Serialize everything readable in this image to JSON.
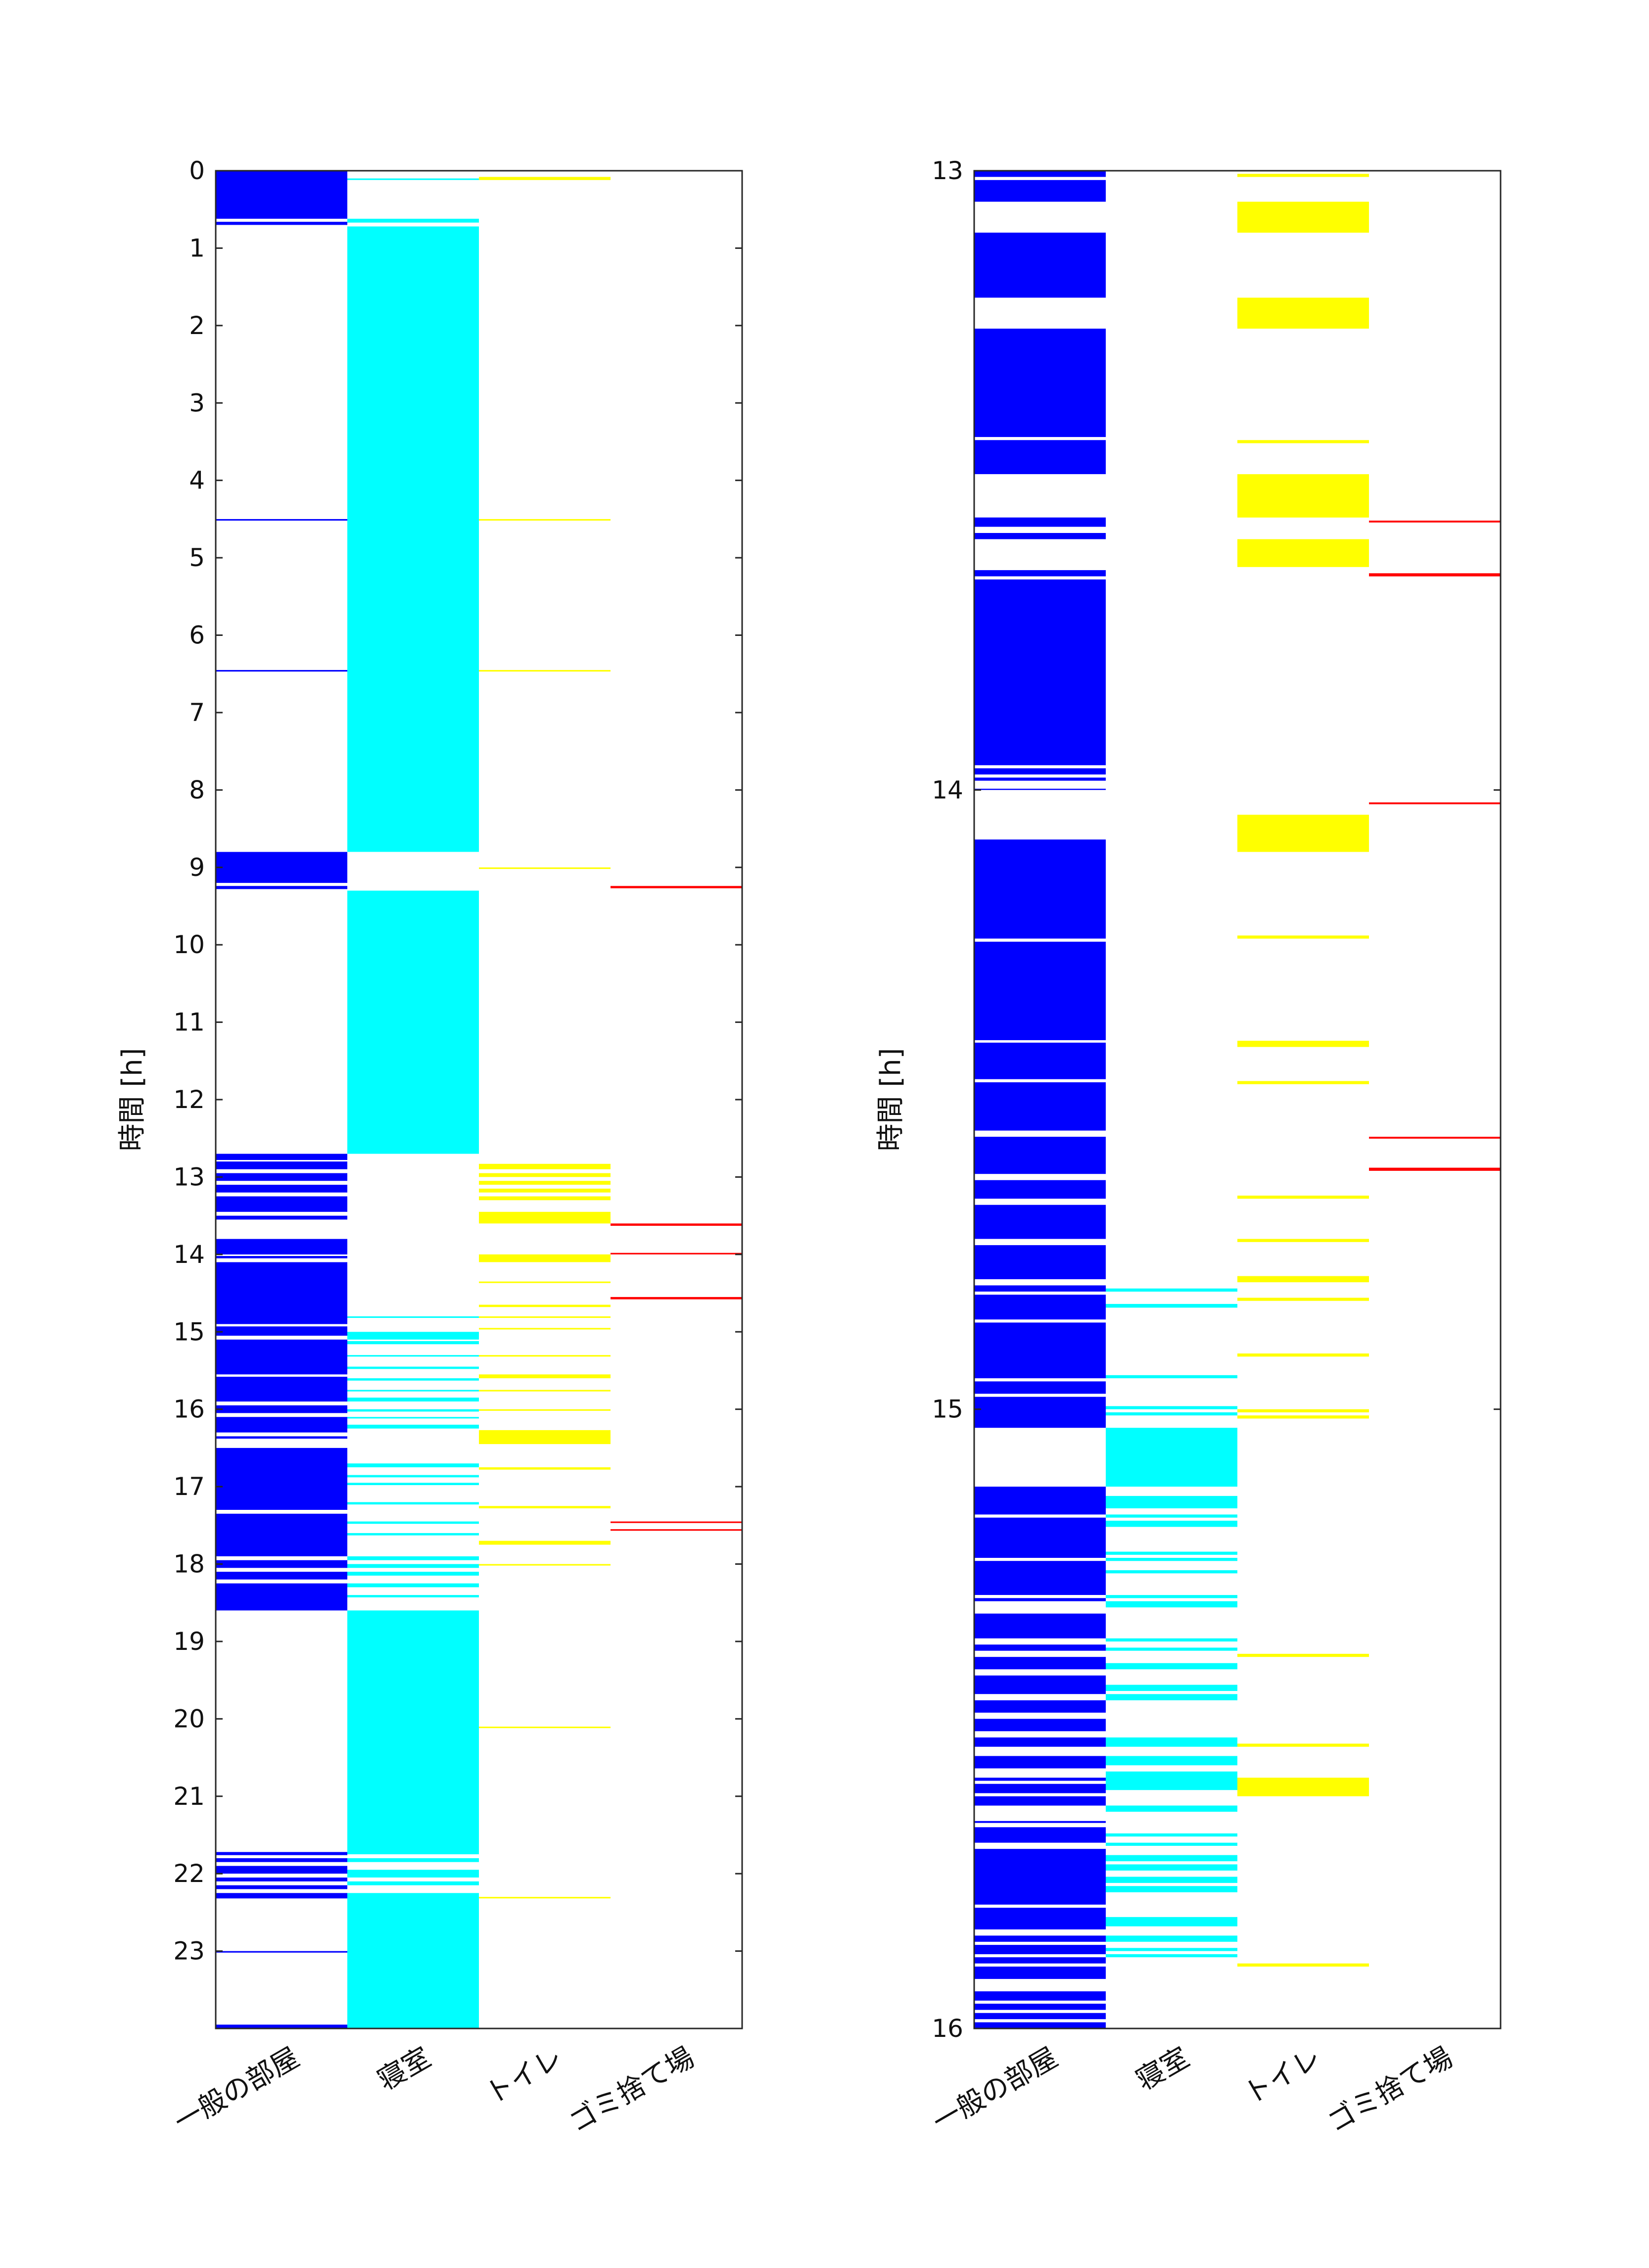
{
  "chart_data": [
    {
      "type": "heatmap",
      "categories": [
        "一般の部屋",
        "寝室",
        "トイレ",
        "ゴミ捨て場"
      ],
      "colors": [
        "#0000ff",
        "#00ffff",
        "#ffff00",
        "#ff0000"
      ],
      "ylabel": "時間 [h]",
      "xlabel": "",
      "title": "",
      "ylim": [
        0,
        24
      ],
      "y_reversed": true,
      "yticks": [
        0,
        1,
        2,
        3,
        4,
        5,
        6,
        7,
        8,
        9,
        10,
        11,
        12,
        13,
        14,
        15,
        16,
        17,
        18,
        19,
        20,
        21,
        22,
        23
      ],
      "yticklabels": [
        "0",
        "1",
        "2",
        "3",
        "4",
        "5",
        "6",
        "7",
        "8",
        "9",
        "10",
        "11",
        "12",
        "13",
        "14",
        "15",
        "16",
        "17",
        "18",
        "19",
        "20",
        "21",
        "22",
        "23"
      ],
      "grid": false,
      "series": [
        {
          "intervals": [
            [
              0.0,
              0.62
            ],
            [
              0.66,
              0.7
            ],
            [
              8.8,
              9.2
            ],
            [
              9.24,
              9.28
            ],
            [
              4.5,
              4.52
            ],
            [
              6.45,
              6.47
            ],
            [
              12.7,
              12.78
            ],
            [
              12.8,
              12.9
            ],
            [
              12.95,
              13.05
            ],
            [
              13.1,
              13.2
            ],
            [
              13.25,
              13.45
            ],
            [
              13.5,
              13.55
            ],
            [
              13.8,
              14.0
            ],
            [
              14.02,
              14.05
            ],
            [
              14.1,
              14.9
            ],
            [
              14.93,
              15.05
            ],
            [
              15.1,
              15.55
            ],
            [
              15.58,
              15.9
            ],
            [
              15.95,
              16.05
            ],
            [
              16.1,
              16.3
            ],
            [
              16.35,
              16.38
            ],
            [
              16.5,
              17.3
            ],
            [
              17.35,
              17.9
            ],
            [
              17.95,
              18.05
            ],
            [
              18.1,
              18.2
            ],
            [
              18.25,
              18.6
            ],
            [
              21.72,
              21.76
            ],
            [
              21.8,
              21.85
            ],
            [
              21.9,
              22.0
            ],
            [
              22.05,
              22.1
            ],
            [
              22.15,
              22.2
            ],
            [
              22.25,
              22.32
            ],
            [
              23.0,
              23.02
            ],
            [
              23.95,
              24.0
            ]
          ]
        },
        {
          "intervals": [
            [
              0.1,
              0.12
            ],
            [
              0.62,
              0.67
            ],
            [
              0.72,
              8.8
            ],
            [
              9.3,
              12.7
            ],
            [
              14.8,
              14.82
            ],
            [
              15.0,
              15.1
            ],
            [
              15.12,
              15.16
            ],
            [
              15.3,
              15.32
            ],
            [
              15.45,
              15.48
            ],
            [
              15.6,
              15.63
            ],
            [
              15.75,
              15.77
            ],
            [
              15.85,
              15.9
            ],
            [
              16.0,
              16.03
            ],
            [
              16.1,
              16.12
            ],
            [
              16.2,
              16.25
            ],
            [
              16.7,
              16.75
            ],
            [
              16.85,
              16.88
            ],
            [
              16.95,
              16.98
            ],
            [
              17.2,
              17.23
            ],
            [
              17.45,
              17.48
            ],
            [
              17.6,
              17.63
            ],
            [
              17.9,
              17.95
            ],
            [
              18.0,
              18.05
            ],
            [
              18.1,
              18.15
            ],
            [
              18.25,
              18.3
            ],
            [
              18.4,
              18.43
            ],
            [
              18.6,
              21.75
            ],
            [
              21.8,
              21.85
            ],
            [
              21.95,
              22.05
            ],
            [
              22.1,
              22.15
            ],
            [
              22.25,
              24.0
            ]
          ]
        },
        {
          "intervals": [
            [
              0.08,
              0.12
            ],
            [
              4.5,
              4.52
            ],
            [
              6.45,
              6.47
            ],
            [
              9.0,
              9.02
            ],
            [
              12.83,
              12.9
            ],
            [
              12.95,
              13.0
            ],
            [
              13.05,
              13.1
            ],
            [
              13.15,
              13.2
            ],
            [
              13.25,
              13.3
            ],
            [
              13.45,
              13.6
            ],
            [
              14.0,
              14.1
            ],
            [
              14.35,
              14.37
            ],
            [
              14.65,
              14.68
            ],
            [
              14.8,
              14.82
            ],
            [
              14.95,
              14.97
            ],
            [
              15.3,
              15.32
            ],
            [
              15.55,
              15.6
            ],
            [
              15.75,
              15.77
            ],
            [
              16.0,
              16.02
            ],
            [
              16.27,
              16.45
            ],
            [
              16.75,
              16.78
            ],
            [
              17.25,
              17.28
            ],
            [
              17.7,
              17.75
            ],
            [
              18.0,
              18.02
            ],
            [
              20.1,
              20.12
            ],
            [
              22.3,
              22.32
            ]
          ]
        },
        {
          "intervals": [
            [
              9.24,
              9.27
            ],
            [
              13.6,
              13.63
            ],
            [
              13.98,
              14.0
            ],
            [
              14.55,
              14.58
            ],
            [
              17.45,
              17.47
            ],
            [
              17.55,
              17.57
            ]
          ]
        }
      ]
    },
    {
      "type": "heatmap",
      "categories": [
        "一般の部屋",
        "寝室",
        "トイレ",
        "ゴミ捨て場"
      ],
      "colors": [
        "#0000ff",
        "#00ffff",
        "#ffff00",
        "#ff0000"
      ],
      "ylabel": "時間 [h]",
      "xlabel": "",
      "title": "",
      "ylim": [
        13,
        16
      ],
      "y_reversed": true,
      "yticks": [
        13,
        14,
        15,
        16
      ],
      "yticklabels": [
        "13",
        "14",
        "15",
        "16"
      ],
      "grid": false,
      "series": [
        {
          "intervals": [
            [
              13.0,
              13.01
            ],
            [
              13.015,
              13.05
            ],
            [
              13.1,
              13.205
            ],
            [
              13.255,
              13.43
            ],
            [
              13.435,
              13.49
            ],
            [
              13.56,
              13.575
            ],
            [
              13.585,
              13.595
            ],
            [
              13.645,
              13.655
            ],
            [
              13.66,
              13.96
            ],
            [
              13.965,
              13.975
            ],
            [
              13.98,
              13.985
            ],
            [
              13.998,
              14.0
            ],
            [
              14.08,
              14.24
            ],
            [
              14.245,
              14.404
            ],
            [
              14.408,
              14.467
            ],
            [
              14.472,
              14.55
            ],
            [
              14.56,
              14.62
            ],
            [
              14.63,
              14.66
            ],
            [
              14.67,
              14.725
            ],
            [
              14.735,
              14.79
            ],
            [
              14.8,
              14.81
            ],
            [
              14.815,
              14.855
            ],
            [
              14.86,
              14.95
            ],
            [
              14.955,
              14.975
            ],
            [
              14.98,
              15.03
            ],
            [
              15.125,
              15.17
            ],
            [
              15.175,
              15.24
            ],
            [
              15.245,
              15.3
            ],
            [
              15.305,
              15.31
            ],
            [
              15.33,
              15.37
            ],
            [
              15.38,
              15.39
            ],
            [
              15.4,
              15.42
            ],
            [
              15.43,
              15.46
            ],
            [
              15.47,
              15.49
            ],
            [
              15.5,
              15.52
            ],
            [
              15.53,
              15.545
            ],
            [
              15.56,
              15.58
            ],
            [
              15.595,
              15.6
            ],
            [
              15.605,
              15.62
            ],
            [
              15.625,
              15.64
            ],
            [
              15.665,
              15.668
            ],
            [
              15.675,
              15.7
            ],
            [
              15.71,
              15.8
            ],
            [
              15.805,
              15.84
            ],
            [
              15.85,
              15.86
            ],
            [
              15.865,
              15.88
            ],
            [
              15.885,
              15.895
            ],
            [
              15.9,
              15.92
            ],
            [
              15.94,
              15.955
            ],
            [
              15.96,
              15.97
            ],
            [
              15.975,
              15.985
            ],
            [
              15.99,
              16.0
            ]
          ]
        },
        {
          "intervals": [
            [
              14.805,
              14.81
            ],
            [
              14.83,
              14.836
            ],
            [
              14.945,
              14.95
            ],
            [
              14.995,
              15.0
            ],
            [
              15.005,
              15.01
            ],
            [
              15.03,
              15.125
            ],
            [
              15.14,
              15.16
            ],
            [
              15.17,
              15.175
            ],
            [
              15.18,
              15.19
            ],
            [
              15.23,
              15.235
            ],
            [
              15.24,
              15.245
            ],
            [
              15.26,
              15.265
            ],
            [
              15.3,
              15.305
            ],
            [
              15.31,
              15.32
            ],
            [
              15.37,
              15.375
            ],
            [
              15.385,
              15.39
            ],
            [
              15.41,
              15.42
            ],
            [
              15.445,
              15.455
            ],
            [
              15.46,
              15.47
            ],
            [
              15.53,
              15.545
            ],
            [
              15.56,
              15.575
            ],
            [
              15.585,
              15.615
            ],
            [
              15.64,
              15.65
            ],
            [
              15.685,
              15.69
            ],
            [
              15.7,
              15.705
            ],
            [
              15.72,
              15.73
            ],
            [
              15.735,
              15.745
            ],
            [
              15.755,
              15.765
            ],
            [
              15.77,
              15.78
            ],
            [
              15.82,
              15.835
            ],
            [
              15.85,
              15.86
            ],
            [
              15.87,
              15.875
            ],
            [
              15.88,
              15.885
            ]
          ]
        },
        {
          "intervals": [
            [
              13.005,
              13.01
            ],
            [
              13.05,
              13.1
            ],
            [
              13.205,
              13.255
            ],
            [
              13.435,
              13.44
            ],
            [
              13.49,
              13.56
            ],
            [
              13.595,
              13.64
            ],
            [
              14.04,
              14.1
            ],
            [
              14.235,
              14.24
            ],
            [
              14.405,
              14.415
            ],
            [
              14.47,
              14.475
            ],
            [
              14.655,
              14.66
            ],
            [
              14.725,
              14.73
            ],
            [
              14.785,
              14.795
            ],
            [
              14.82,
              14.825
            ],
            [
              14.91,
              14.915
            ],
            [
              15.0,
              15.005
            ],
            [
              15.01,
              15.015
            ],
            [
              15.395,
              15.4
            ],
            [
              15.54,
              15.545
            ],
            [
              15.595,
              15.625
            ],
            [
              15.895,
              15.9
            ]
          ]
        },
        {
          "intervals": [
            [
              13.565,
              13.568
            ],
            [
              13.65,
              13.655
            ],
            [
              14.02,
              14.023
            ],
            [
              14.56,
              14.563
            ],
            [
              14.61,
              14.615
            ]
          ]
        }
      ]
    }
  ]
}
